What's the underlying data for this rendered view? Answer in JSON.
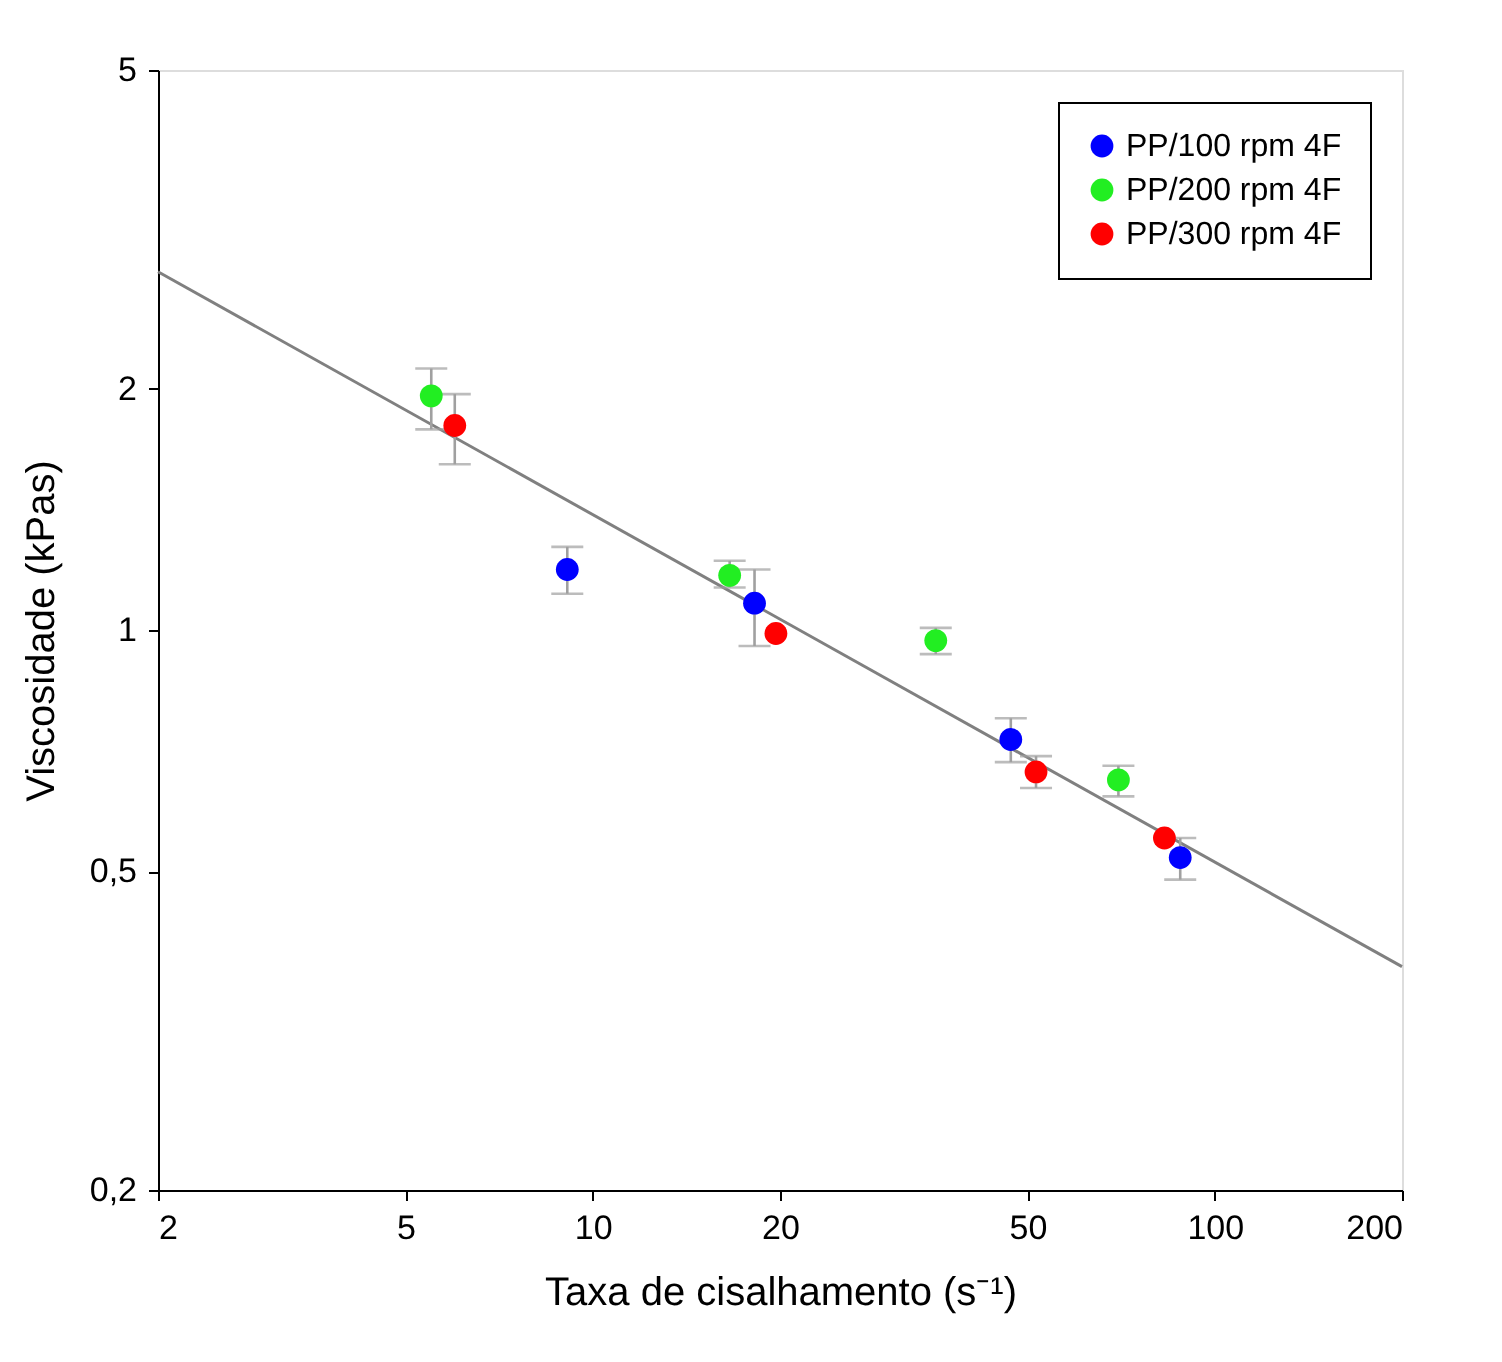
{
  "chart_data": {
    "type": "scatter",
    "xlabel": "Taxa de cisalhamento (s⁻¹)",
    "ylabel": "Viscosidade (kPas)",
    "log": "xy",
    "grid": false,
    "legend": "top right",
    "marker": "circle",
    "xlim": [
      2,
      200
    ],
    "xticks": [
      2,
      5,
      10,
      20,
      50,
      100,
      200
    ],
    "ylim": [
      0.2,
      5
    ],
    "yticks": [
      {
        "value": 0.2,
        "label": "0,2"
      },
      {
        "value": 0.5,
        "label": "0,5"
      },
      1,
      2,
      5
    ],
    "series": [
      {
        "name": "PP/100 rpm 4F",
        "color": "#0000ff",
        "x": [
          9.1,
          18.2,
          47,
          88
        ],
        "values": [
          1.19,
          1.08,
          0.73,
          0.52
        ],
        "errors": [
          [
            1.11,
            1.27
          ],
          [
            0.955,
            1.19
          ],
          [
            0.684,
            0.776
          ],
          [
            0.488,
            0.55
          ]
        ]
      },
      {
        "name": "PP/200 rpm 4F",
        "color": "#22ee22",
        "x": [
          5.5,
          16.6,
          35.6,
          70
        ],
        "values": [
          1.96,
          1.17,
          0.97,
          0.65
        ],
        "errors": [
          [
            1.78,
            2.12
          ],
          [
            1.13,
            1.22
          ],
          [
            0.933,
            1.006
          ],
          [
            0.62,
            0.677
          ]
        ]
      },
      {
        "name": "PP/300 rpm 4F",
        "color": "#ff0000",
        "x": [
          6.0,
          19.7,
          51.6,
          83
        ],
        "values": [
          1.8,
          0.99,
          0.665,
          0.55
        ],
        "errors": [
          [
            1.61,
            1.97
          ],
          null,
          [
            0.635,
            0.696
          ],
          null
        ]
      },
      {
        "type": "line",
        "marker": "none",
        "color": "#808080",
        "x": [
          2,
          200
        ],
        "values": [
          2.8,
          0.38
        ]
      }
    ]
  }
}
